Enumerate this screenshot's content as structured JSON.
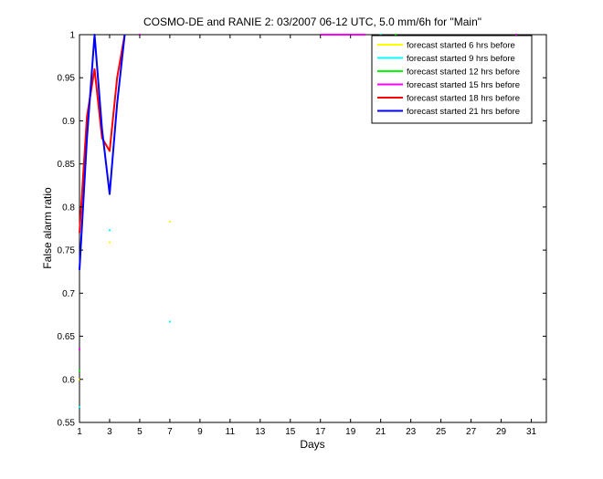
{
  "chart_data": {
    "type": "line",
    "title": "COSMO-DE and RANIE 2: 03/2007 06-12 UTC, 5.0 mm/6h for \"Main\"",
    "xlabel": "Days",
    "ylabel": "False alarm ratio",
    "xlim": [
      1,
      32
    ],
    "ylim": [
      0.55,
      1
    ],
    "xticks": [
      1,
      3,
      5,
      7,
      9,
      11,
      13,
      15,
      17,
      19,
      21,
      23,
      25,
      27,
      29,
      31
    ],
    "yticks": [
      0.55,
      0.6,
      0.65,
      0.7,
      0.75,
      0.8,
      0.85,
      0.9,
      0.95,
      1
    ],
    "grid": false,
    "legend_position": "top-right",
    "series": [
      {
        "name": "forecast started 6 hrs before",
        "color": "#ffff00",
        "lines": [],
        "points": [
          {
            "x": 1,
            "y": 0.6
          },
          {
            "x": 3,
            "y": 0.759
          },
          {
            "x": 7,
            "y": 0.783
          },
          {
            "x": 22,
            "y": 1
          }
        ]
      },
      {
        "name": "forecast started 9 hrs before",
        "color": "#00ffff",
        "lines": [],
        "points": [
          {
            "x": 1,
            "y": 0.568
          },
          {
            "x": 3,
            "y": 0.773
          },
          {
            "x": 7,
            "y": 0.667
          },
          {
            "x": 21,
            "y": 1
          }
        ]
      },
      {
        "name": "forecast started 12 hrs before",
        "color": "#00ff00",
        "lines": [],
        "points": [
          {
            "x": 1,
            "y": 0.61
          },
          {
            "x": 22,
            "y": 1
          }
        ]
      },
      {
        "name": "forecast started 15 hrs before",
        "color": "#ff00ff",
        "lines": [
          [
            {
              "x": 17,
              "y": 1
            },
            {
              "x": 20,
              "y": 1
            }
          ]
        ],
        "points": [
          {
            "x": 1,
            "y": 0.635
          },
          {
            "x": 5,
            "y": 1
          },
          {
            "x": 30,
            "y": 1
          }
        ]
      },
      {
        "name": "forecast started 18 hrs before",
        "color": "#ff0000",
        "lines": [
          [
            {
              "x": 1,
              "y": 0.77
            },
            {
              "x": 1.5,
              "y": 0.905
            },
            {
              "x": 2,
              "y": 0.96
            },
            {
              "x": 2.5,
              "y": 0.88
            },
            {
              "x": 3,
              "y": 0.865
            },
            {
              "x": 3.5,
              "y": 0.95
            },
            {
              "x": 4,
              "y": 1
            }
          ]
        ],
        "points": []
      },
      {
        "name": "forecast started 21 hrs before",
        "color": "#0000ff",
        "lines": [
          [
            {
              "x": 1,
              "y": 0.727
            },
            {
              "x": 1.5,
              "y": 0.88
            },
            {
              "x": 2,
              "y": 1
            },
            {
              "x": 2.5,
              "y": 0.89
            },
            {
              "x": 3,
              "y": 0.815
            },
            {
              "x": 3.5,
              "y": 0.92
            },
            {
              "x": 4,
              "y": 1
            }
          ]
        ],
        "points": []
      }
    ]
  }
}
